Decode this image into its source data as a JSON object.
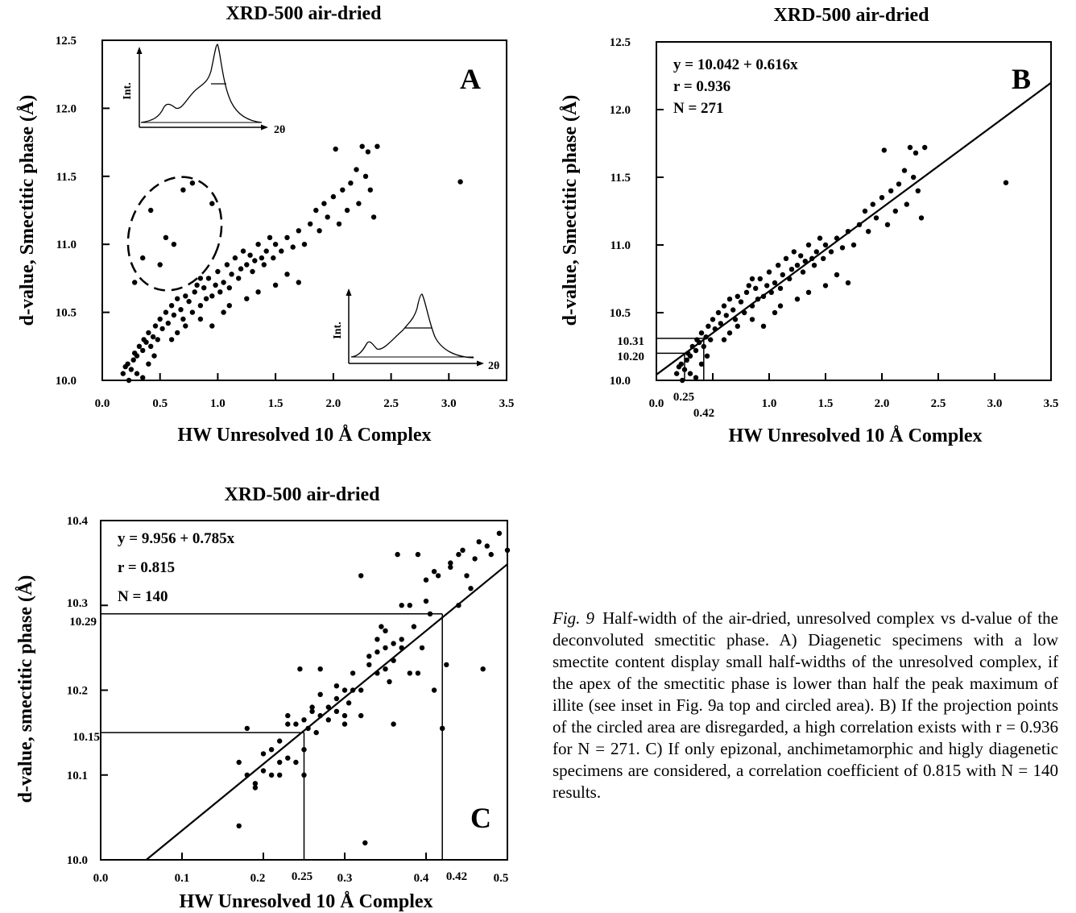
{
  "chart_data": [
    {
      "panel": "A",
      "type": "scatter",
      "title": "XRD-500 air-dried",
      "xlabel": "HW Unresolved 10 Å Complex",
      "ylabel": "d-value, Smectitic phase (Å)",
      "xlim": [
        0.0,
        3.5
      ],
      "ylim": [
        10.0,
        12.5
      ],
      "xticks": [
        "0.0",
        "0.5",
        "1.0",
        "1.5",
        "2.0",
        "2.5",
        "3.0",
        "3.5"
      ],
      "yticks": [
        "10.0",
        "10.5",
        "11.0",
        "11.5",
        "12.0",
        "12.5"
      ],
      "annotations": [
        "A"
      ],
      "insets": [
        {
          "ylabel": "Int.",
          "xlabel": "2θ",
          "position": "top-left"
        },
        {
          "ylabel": "Int.",
          "xlabel": "2θ",
          "position": "bottom-right"
        }
      ],
      "circled_area": {
        "x": [
          0.2,
          1.05
        ],
        "y": [
          10.65,
          11.5
        ]
      },
      "points": [
        [
          0.18,
          10.05
        ],
        [
          0.2,
          10.1
        ],
        [
          0.22,
          10.12
        ],
        [
          0.25,
          10.08
        ],
        [
          0.27,
          10.15
        ],
        [
          0.28,
          10.2
        ],
        [
          0.3,
          10.18
        ],
        [
          0.32,
          10.25
        ],
        [
          0.35,
          10.22
        ],
        [
          0.36,
          10.3
        ],
        [
          0.38,
          10.28
        ],
        [
          0.4,
          10.35
        ],
        [
          0.42,
          10.25
        ],
        [
          0.44,
          10.32
        ],
        [
          0.46,
          10.4
        ],
        [
          0.48,
          10.3
        ],
        [
          0.5,
          10.45
        ],
        [
          0.52,
          10.38
        ],
        [
          0.55,
          10.5
        ],
        [
          0.57,
          10.42
        ],
        [
          0.6,
          10.55
        ],
        [
          0.62,
          10.48
        ],
        [
          0.65,
          10.6
        ],
        [
          0.68,
          10.52
        ],
        [
          0.7,
          10.45
        ],
        [
          0.72,
          10.62
        ],
        [
          0.75,
          10.58
        ],
        [
          0.78,
          10.5
        ],
        [
          0.8,
          10.65
        ],
        [
          0.82,
          10.7
        ],
        [
          0.85,
          10.55
        ],
        [
          0.88,
          10.68
        ],
        [
          0.9,
          10.6
        ],
        [
          0.92,
          10.75
        ],
        [
          0.95,
          10.62
        ],
        [
          0.98,
          10.7
        ],
        [
          1.0,
          10.8
        ],
        [
          1.02,
          10.65
        ],
        [
          1.05,
          10.72
        ],
        [
          1.08,
          10.85
        ],
        [
          1.1,
          10.68
        ],
        [
          1.12,
          10.78
        ],
        [
          1.15,
          10.9
        ],
        [
          1.18,
          10.75
        ],
        [
          1.2,
          10.82
        ],
        [
          1.22,
          10.95
        ],
        [
          1.25,
          10.85
        ],
        [
          1.28,
          10.92
        ],
        [
          1.3,
          10.8
        ],
        [
          1.32,
          10.88
        ],
        [
          1.35,
          11.0
        ],
        [
          1.38,
          10.9
        ],
        [
          1.4,
          10.85
        ],
        [
          1.42,
          10.95
        ],
        [
          1.45,
          11.05
        ],
        [
          1.48,
          10.9
        ],
        [
          1.5,
          11.0
        ],
        [
          1.55,
          10.95
        ],
        [
          1.6,
          11.05
        ],
        [
          1.65,
          10.98
        ],
        [
          1.7,
          11.1
        ],
        [
          1.75,
          11.0
        ],
        [
          1.8,
          11.15
        ],
        [
          1.85,
          11.25
        ],
        [
          1.88,
          11.1
        ],
        [
          1.92,
          11.3
        ],
        [
          1.95,
          11.2
        ],
        [
          2.0,
          11.35
        ],
        [
          2.02,
          11.7
        ],
        [
          2.05,
          11.15
        ],
        [
          2.08,
          11.4
        ],
        [
          2.12,
          11.25
        ],
        [
          2.15,
          11.45
        ],
        [
          2.2,
          11.55
        ],
        [
          2.22,
          11.3
        ],
        [
          2.25,
          11.72
        ],
        [
          2.28,
          11.5
        ],
        [
          2.3,
          11.68
        ],
        [
          2.32,
          11.4
        ],
        [
          2.35,
          11.2
        ],
        [
          2.38,
          11.72
        ],
        [
          3.1,
          11.46
        ],
        [
          0.28,
          10.72
        ],
        [
          0.35,
          10.9
        ],
        [
          0.42,
          11.25
        ],
        [
          0.5,
          10.85
        ],
        [
          0.55,
          11.05
        ],
        [
          0.62,
          11.0
        ],
        [
          0.7,
          11.4
        ],
        [
          0.78,
          11.45
        ],
        [
          0.85,
          10.75
        ],
        [
          0.95,
          11.3
        ],
        [
          0.23,
          10.0
        ],
        [
          0.3,
          10.05
        ],
        [
          0.35,
          10.02
        ],
        [
          0.4,
          10.12
        ],
        [
          0.45,
          10.18
        ],
        [
          0.6,
          10.3
        ],
        [
          0.65,
          10.35
        ],
        [
          0.72,
          10.4
        ],
        [
          0.85,
          10.45
        ],
        [
          0.95,
          10.4
        ],
        [
          1.05,
          10.5
        ],
        [
          1.1,
          10.55
        ],
        [
          1.25,
          10.6
        ],
        [
          1.35,
          10.65
        ],
        [
          1.5,
          10.7
        ],
        [
          1.6,
          10.78
        ],
        [
          1.7,
          10.72
        ]
      ]
    },
    {
      "panel": "B",
      "type": "scatter",
      "title": "XRD-500 air-dried",
      "xlabel": "HW Unresolved 10 Å Complex",
      "ylabel": "d-value, Smectitic phase (Å)",
      "xlim": [
        0.0,
        3.5
      ],
      "ylim": [
        10.0,
        12.5
      ],
      "xticks": [
        "0.0",
        "0.5",
        "1.0",
        "1.5",
        "2.0",
        "2.5",
        "3.0",
        "3.5"
      ],
      "yticks": [
        "10.0",
        "10.5",
        "11.0",
        "11.5",
        "12.0",
        "12.5"
      ],
      "equation": [
        "y = 10.042 + 0.616x",
        "r = 0.936",
        "N = 271"
      ],
      "fit": {
        "intercept": 10.042,
        "slope": 0.616
      },
      "annotations": [
        "B"
      ],
      "reference_lines": [
        {
          "x": 0.25,
          "y": 10.2,
          "xlabel": "0.25",
          "ylabel": "10.20"
        },
        {
          "x": 0.42,
          "y": 10.31,
          "xlabel": "0.42",
          "ylabel": "10.31"
        }
      ],
      "points": [
        [
          0.18,
          10.05
        ],
        [
          0.2,
          10.1
        ],
        [
          0.22,
          10.12
        ],
        [
          0.25,
          10.08
        ],
        [
          0.27,
          10.15
        ],
        [
          0.28,
          10.2
        ],
        [
          0.3,
          10.18
        ],
        [
          0.32,
          10.25
        ],
        [
          0.35,
          10.22
        ],
        [
          0.36,
          10.3
        ],
        [
          0.38,
          10.28
        ],
        [
          0.4,
          10.35
        ],
        [
          0.42,
          10.25
        ],
        [
          0.44,
          10.32
        ],
        [
          0.46,
          10.4
        ],
        [
          0.48,
          10.3
        ],
        [
          0.5,
          10.45
        ],
        [
          0.52,
          10.38
        ],
        [
          0.55,
          10.5
        ],
        [
          0.57,
          10.42
        ],
        [
          0.6,
          10.55
        ],
        [
          0.62,
          10.48
        ],
        [
          0.65,
          10.6
        ],
        [
          0.68,
          10.52
        ],
        [
          0.7,
          10.45
        ],
        [
          0.72,
          10.62
        ],
        [
          0.75,
          10.58
        ],
        [
          0.78,
          10.5
        ],
        [
          0.8,
          10.65
        ],
        [
          0.82,
          10.7
        ],
        [
          0.85,
          10.55
        ],
        [
          0.88,
          10.68
        ],
        [
          0.9,
          10.6
        ],
        [
          0.92,
          10.75
        ],
        [
          0.95,
          10.62
        ],
        [
          0.98,
          10.7
        ],
        [
          1.0,
          10.8
        ],
        [
          1.02,
          10.65
        ],
        [
          1.05,
          10.72
        ],
        [
          1.08,
          10.85
        ],
        [
          1.1,
          10.68
        ],
        [
          1.12,
          10.78
        ],
        [
          1.15,
          10.9
        ],
        [
          1.18,
          10.75
        ],
        [
          1.2,
          10.82
        ],
        [
          1.22,
          10.95
        ],
        [
          1.25,
          10.85
        ],
        [
          1.28,
          10.92
        ],
        [
          1.3,
          10.8
        ],
        [
          1.32,
          10.88
        ],
        [
          1.35,
          11.0
        ],
        [
          1.38,
          10.9
        ],
        [
          1.4,
          10.85
        ],
        [
          1.42,
          10.95
        ],
        [
          1.45,
          11.05
        ],
        [
          1.48,
          10.9
        ],
        [
          1.5,
          11.0
        ],
        [
          1.55,
          10.95
        ],
        [
          1.6,
          11.05
        ],
        [
          1.65,
          10.98
        ],
        [
          1.7,
          11.1
        ],
        [
          1.75,
          11.0
        ],
        [
          1.8,
          11.15
        ],
        [
          1.85,
          11.25
        ],
        [
          1.88,
          11.1
        ],
        [
          1.92,
          11.3
        ],
        [
          1.95,
          11.2
        ],
        [
          2.0,
          11.35
        ],
        [
          2.02,
          11.7
        ],
        [
          2.05,
          11.15
        ],
        [
          2.08,
          11.4
        ],
        [
          2.12,
          11.25
        ],
        [
          2.15,
          11.45
        ],
        [
          2.2,
          11.55
        ],
        [
          2.22,
          11.3
        ],
        [
          2.25,
          11.72
        ],
        [
          2.28,
          11.5
        ],
        [
          2.3,
          11.68
        ],
        [
          2.32,
          11.4
        ],
        [
          2.35,
          11.2
        ],
        [
          2.38,
          11.72
        ],
        [
          3.1,
          11.46
        ],
        [
          0.85,
          10.75
        ],
        [
          0.23,
          10.0
        ],
        [
          0.3,
          10.05
        ],
        [
          0.35,
          10.02
        ],
        [
          0.4,
          10.12
        ],
        [
          0.45,
          10.18
        ],
        [
          0.6,
          10.3
        ],
        [
          0.65,
          10.35
        ],
        [
          0.72,
          10.4
        ],
        [
          0.85,
          10.45
        ],
        [
          0.95,
          10.4
        ],
        [
          1.05,
          10.5
        ],
        [
          1.1,
          10.55
        ],
        [
          1.25,
          10.6
        ],
        [
          1.35,
          10.65
        ],
        [
          1.5,
          10.7
        ],
        [
          1.6,
          10.78
        ],
        [
          1.7,
          10.72
        ]
      ]
    },
    {
      "panel": "C",
      "type": "scatter",
      "title": "XRD-500 air-dried",
      "xlabel": "HW Unresolved 10 Å Complex",
      "ylabel": "d-value, smectitic phase (Å)",
      "xlim": [
        0.0,
        0.5
      ],
      "ylim": [
        10.0,
        10.4
      ],
      "xticks": [
        "0.0",
        "0.1",
        "0.2",
        "0.3",
        "0.4",
        "0.5"
      ],
      "yticks": [
        "10.0",
        "10.1",
        "10.2",
        "10.3",
        "10.4"
      ],
      "equation": [
        "y = 9.956 + 0.785x",
        "r = 0.815",
        "N = 140"
      ],
      "fit": {
        "intercept": 9.956,
        "slope": 0.785
      },
      "annotations": [
        "C"
      ],
      "reference_lines": [
        {
          "x": 0.25,
          "y": 10.15,
          "xlabel": "0.25",
          "ylabel": "10.15"
        },
        {
          "x": 0.42,
          "y": 10.29,
          "xlabel": "0.42",
          "ylabel": "10.29"
        }
      ],
      "points": [
        [
          0.17,
          10.04
        ],
        [
          0.17,
          10.115
        ],
        [
          0.18,
          10.1
        ],
        [
          0.18,
          10.155
        ],
        [
          0.19,
          10.085
        ],
        [
          0.19,
          10.09
        ],
        [
          0.2,
          10.125
        ],
        [
          0.2,
          10.105
        ],
        [
          0.21,
          10.1
        ],
        [
          0.21,
          10.13
        ],
        [
          0.22,
          10.1
        ],
        [
          0.22,
          10.14
        ],
        [
          0.22,
          10.115
        ],
        [
          0.23,
          10.16
        ],
        [
          0.23,
          10.12
        ],
        [
          0.23,
          10.17
        ],
        [
          0.24,
          10.115
        ],
        [
          0.24,
          10.16
        ],
        [
          0.245,
          10.225
        ],
        [
          0.25,
          10.13
        ],
        [
          0.25,
          10.1
        ],
        [
          0.25,
          10.165
        ],
        [
          0.255,
          10.155
        ],
        [
          0.26,
          10.175
        ],
        [
          0.26,
          10.18
        ],
        [
          0.265,
          10.15
        ],
        [
          0.27,
          10.17
        ],
        [
          0.27,
          10.195
        ],
        [
          0.27,
          10.225
        ],
        [
          0.28,
          10.18
        ],
        [
          0.28,
          10.165
        ],
        [
          0.29,
          10.175
        ],
        [
          0.29,
          10.19
        ],
        [
          0.29,
          10.205
        ],
        [
          0.3,
          10.17
        ],
        [
          0.3,
          10.2
        ],
        [
          0.3,
          10.16
        ],
        [
          0.305,
          10.185
        ],
        [
          0.31,
          10.2
        ],
        [
          0.31,
          10.22
        ],
        [
          0.32,
          10.17
        ],
        [
          0.32,
          10.2
        ],
        [
          0.32,
          10.335
        ],
        [
          0.325,
          10.02
        ],
        [
          0.33,
          10.23
        ],
        [
          0.33,
          10.24
        ],
        [
          0.34,
          10.245
        ],
        [
          0.34,
          10.26
        ],
        [
          0.34,
          10.22
        ],
        [
          0.345,
          10.275
        ],
        [
          0.35,
          10.25
        ],
        [
          0.35,
          10.27
        ],
        [
          0.35,
          10.225
        ],
        [
          0.355,
          10.21
        ],
        [
          0.36,
          10.255
        ],
        [
          0.36,
          10.235
        ],
        [
          0.36,
          10.16
        ],
        [
          0.365,
          10.36
        ],
        [
          0.37,
          10.26
        ],
        [
          0.37,
          10.3
        ],
        [
          0.37,
          10.25
        ],
        [
          0.38,
          10.22
        ],
        [
          0.38,
          10.3
        ],
        [
          0.385,
          10.275
        ],
        [
          0.39,
          10.36
        ],
        [
          0.39,
          10.22
        ],
        [
          0.395,
          10.25
        ],
        [
          0.4,
          10.305
        ],
        [
          0.4,
          10.33
        ],
        [
          0.405,
          10.29
        ],
        [
          0.41,
          10.34
        ],
        [
          0.41,
          10.2
        ],
        [
          0.415,
          10.335
        ],
        [
          0.42,
          10.155
        ],
        [
          0.42,
          10.155
        ],
        [
          0.425,
          10.23
        ],
        [
          0.43,
          10.345
        ],
        [
          0.43,
          10.35
        ],
        [
          0.44,
          10.36
        ],
        [
          0.44,
          10.3
        ],
        [
          0.445,
          10.365
        ],
        [
          0.45,
          10.335
        ],
        [
          0.455,
          10.32
        ],
        [
          0.46,
          10.355
        ],
        [
          0.465,
          10.375
        ],
        [
          0.47,
          10.225
        ],
        [
          0.475,
          10.37
        ],
        [
          0.48,
          10.36
        ],
        [
          0.49,
          10.385
        ],
        [
          0.5,
          10.365
        ]
      ]
    }
  ],
  "caption": {
    "label": "Fig. 9",
    "text": "Half-width of the air-dried, unresolved complex vs d-value of the deconvoluted smectitic phase. A) Diagenetic specimens with a low smectite content display small half-widths of the unresolved complex, if the apex of the smectitic phase is lower than half the peak maximum of illite (see inset in Fig. 9a top and circled area). B) If the projection points of the circled area are disregarded, a high correlation exists with r = 0.936 for N = 271. C) If only epizonal, anchimetamorphic and higly diagenetic specimens are considered, a correlation coefficient of 0.815 with N = 140 results."
  }
}
